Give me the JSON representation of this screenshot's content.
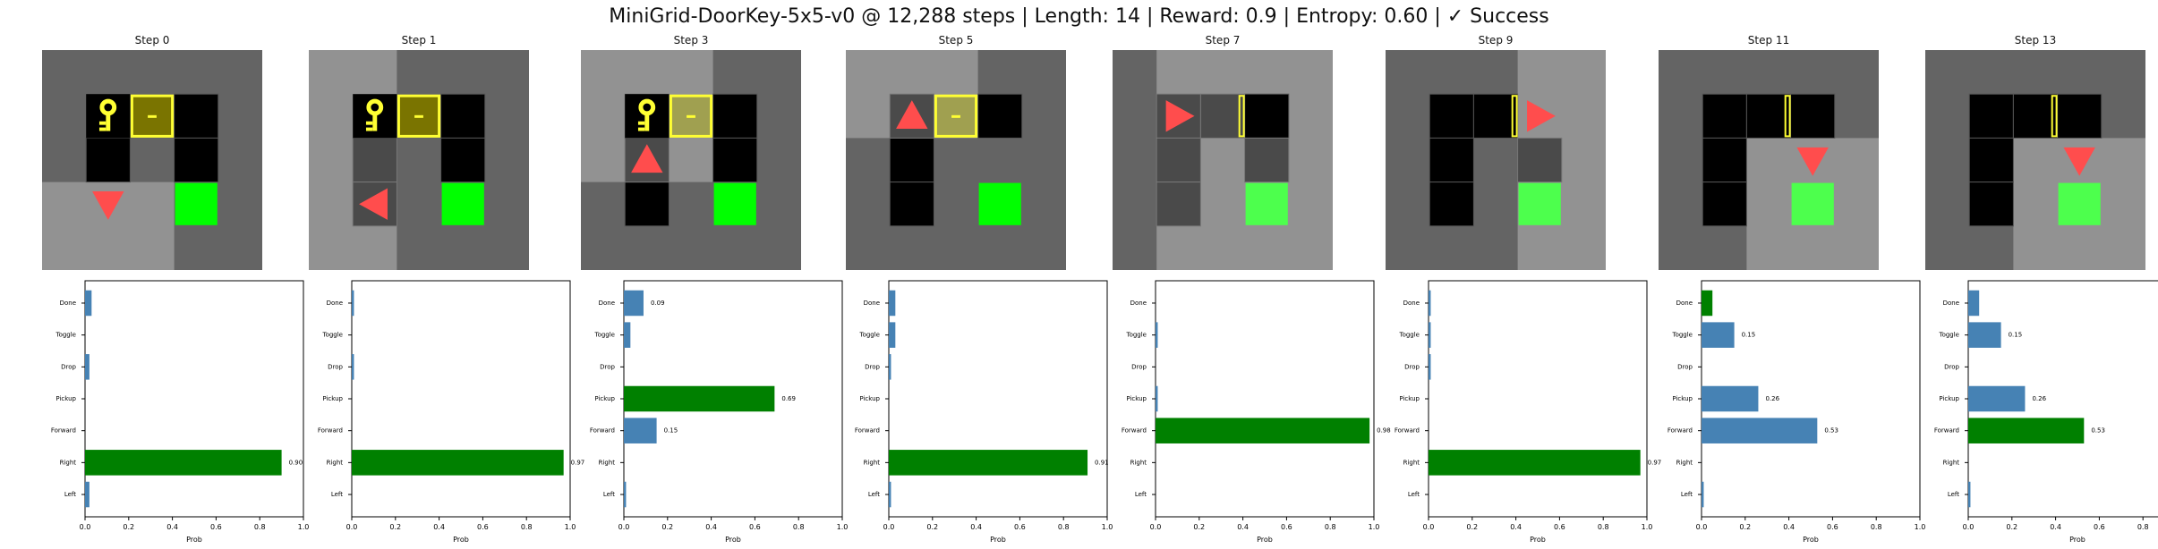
{
  "figure_title": "MiniGrid-DoorKey-5x5-v0 @ 12,288 steps | Length: 14 | Reward: 0.9 | Entropy: 0.60 | ✓ Success",
  "colors": {
    "bar_default": "#4682b4",
    "bar_selected": "#008000",
    "agent": "#ff4d4d",
    "key": "#ffff33",
    "goal": "#00ff00"
  },
  "chart_data": {
    "type": "bar",
    "orientation": "horizontal",
    "categories": [
      "Left",
      "Right",
      "Forward",
      "Pickup",
      "Drop",
      "Toggle",
      "Done"
    ],
    "xlabel": "Prob",
    "xlim": [
      0,
      1
    ],
    "xticks": [
      "0.0",
      "0.2",
      "0.4",
      "0.6",
      "0.8",
      "1.0"
    ],
    "panels": [
      {
        "title": "Step 0",
        "agent_dir": "down",
        "values": [
          0.02,
          0.9,
          0.0,
          0.0,
          0.02,
          0.0,
          0.03
        ],
        "selected": 1,
        "label": "0.90",
        "label_index": 1
      },
      {
        "title": "Step 1",
        "agent_dir": "left",
        "values": [
          0.0,
          0.97,
          0.0,
          0.0,
          0.01,
          0.0,
          0.01
        ],
        "selected": 1,
        "label": "0.97",
        "label_index": 1
      },
      {
        "title": "Step 3",
        "agent_dir": "up",
        "values": [
          0.01,
          0.0,
          0.15,
          0.69,
          0.0,
          0.03,
          0.09
        ],
        "selected": 3,
        "label": "0.69",
        "label_index": 3,
        "label2": "0.15",
        "label2_index": 2,
        "label3": "0.09",
        "label3_index": 6
      },
      {
        "title": "Step 5",
        "agent_dir": "up",
        "values": [
          0.01,
          0.91,
          0.0,
          0.0,
          0.01,
          0.03,
          0.03
        ],
        "selected": 1,
        "label": "0.91",
        "label_index": 1
      },
      {
        "title": "Step 7",
        "agent_dir": "right",
        "values": [
          0.0,
          0.0,
          0.98,
          0.01,
          0.0,
          0.01,
          0.0
        ],
        "selected": 2,
        "label": "0.98",
        "label_index": 2
      },
      {
        "title": "Step 9",
        "agent_dir": "right",
        "values": [
          0.0,
          0.97,
          0.0,
          0.0,
          0.01,
          0.01,
          0.01
        ],
        "selected": 1,
        "label": "0.97",
        "label_index": 1
      },
      {
        "title": "Step 11",
        "agent_dir": "down",
        "values": [
          0.01,
          0.0,
          0.53,
          0.26,
          0.0,
          0.15,
          0.05
        ],
        "selected": 6,
        "label": "0.53",
        "label_index": 2,
        "label2": "0.26",
        "label2_index": 3,
        "label3": "0.15",
        "label3_index": 5
      },
      {
        "title": "Step 13",
        "agent_dir": "down",
        "values": [
          0.01,
          0.0,
          0.53,
          0.26,
          0.0,
          0.15,
          0.05
        ],
        "selected": 2,
        "label": "0.53",
        "label_index": 2,
        "label2": "0.26",
        "label2_index": 3,
        "label3": "0.15",
        "label3_index": 5
      }
    ]
  }
}
